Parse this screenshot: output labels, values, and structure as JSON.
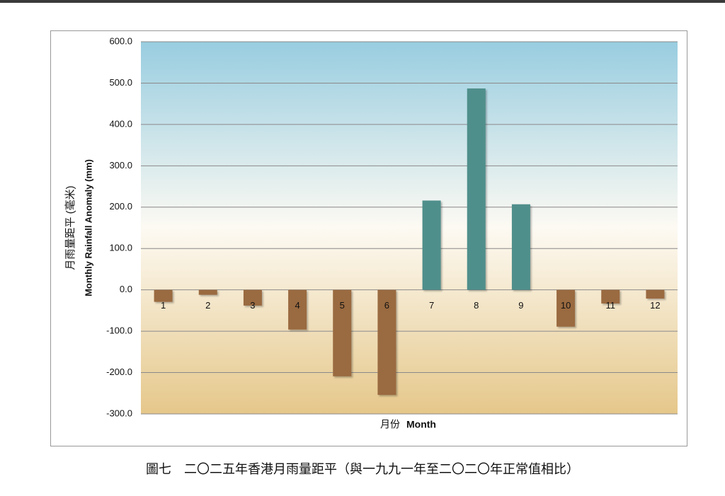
{
  "chart_data": {
    "type": "bar",
    "ylabel": "月雨量距平 (毫米)",
    "ylabel_en": "Monthly Rainfall Anomaly (mm)",
    "xlabel": "月份",
    "xlabel_en": "Month",
    "caption": "圖七　二〇二五年香港月雨量距平（與一九九一年至二〇二〇年正常值相比）",
    "categories": [
      "1",
      "2",
      "3",
      "4",
      "5",
      "6",
      "7",
      "8",
      "9",
      "10",
      "11",
      "12"
    ],
    "values": [
      -29,
      -12,
      -38,
      -96,
      -209,
      -254,
      216,
      487,
      207,
      -89,
      -33,
      -21
    ],
    "color_positive": "#4f8f8b",
    "color_negative": "#9a6a40",
    "ylim": [
      -300,
      600
    ],
    "yticks": [
      {
        "value": -300,
        "label": "-300.0"
      },
      {
        "value": -200,
        "label": "-200.0"
      },
      {
        "value": -100,
        "label": "-100.0"
      },
      {
        "value": 0,
        "label": "0.0"
      },
      {
        "value": 100,
        "label": "100.0"
      },
      {
        "value": 200,
        "label": "200.0"
      },
      {
        "value": 300,
        "label": "300.0"
      },
      {
        "value": 400,
        "label": "400.0"
      },
      {
        "value": 500,
        "label": "500.0"
      },
      {
        "value": 600,
        "label": "600.0"
      }
    ],
    "grid": true
  }
}
